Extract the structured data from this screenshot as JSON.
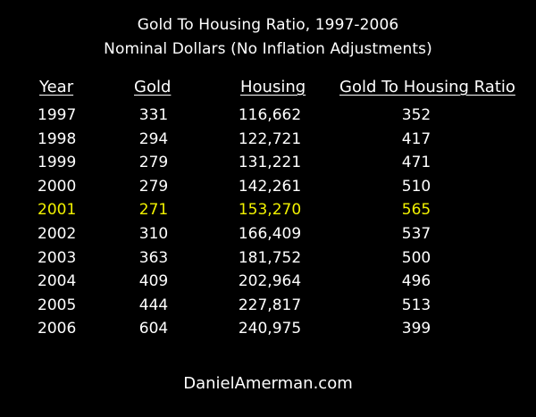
{
  "chart_data": {
    "type": "table",
    "title": "Gold To Housing Ratio, 1997-2006",
    "subtitle": "Nominal Dollars (No Inflation Adjustments)",
    "columns": [
      "Year",
      "Gold",
      "Housing",
      "Gold To Housing Ratio"
    ],
    "rows": [
      [
        "1997",
        "331",
        "116,662",
        "352"
      ],
      [
        "1998",
        "294",
        "122,721",
        "417"
      ],
      [
        "1999",
        "279",
        "131,221",
        "471"
      ],
      [
        "2000",
        "279",
        "142,261",
        "510"
      ],
      [
        "2001",
        "271",
        "153,270",
        "565"
      ],
      [
        "2002",
        "310",
        "166,409",
        "537"
      ],
      [
        "2003",
        "363",
        "181,752",
        "500"
      ],
      [
        "2004",
        "409",
        "202,964",
        "496"
      ],
      [
        "2005",
        "444",
        "227,817",
        "513"
      ],
      [
        "2006",
        "604",
        "240,975",
        "399"
      ]
    ],
    "highlight_row": 4
  },
  "footer": "DanielAmerman.com",
  "colors": {
    "background": "#000000",
    "text": "#ffffff",
    "highlight": "#f2f200"
  }
}
